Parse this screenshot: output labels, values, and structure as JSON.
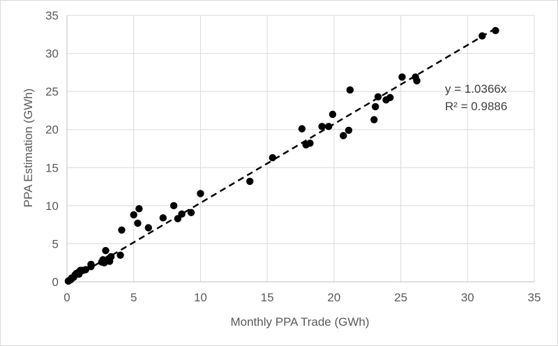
{
  "chart_data": {
    "type": "scatter",
    "title": "",
    "xlabel": "Monthly PPA Trade (GWh)",
    "ylabel": "PPA Estimation (GWh)",
    "xlim": [
      0,
      35
    ],
    "ylim": [
      0,
      35
    ],
    "xticks": [
      0,
      5,
      10,
      15,
      20,
      25,
      30,
      35
    ],
    "yticks": [
      0,
      5,
      10,
      15,
      20,
      25,
      30,
      35
    ],
    "grid": true,
    "legend": "none",
    "colors": {
      "points": "#000000",
      "trendline": "#000000",
      "grid": "#d9d9d9"
    },
    "trendline": {
      "slope": 1.0366,
      "intercept": 0,
      "style": "dashed",
      "x_range": [
        0,
        32
      ]
    },
    "annotations": {
      "equation": "y = 1.0366x",
      "r_squared": "R² = 0.9886"
    },
    "points": [
      [
        0.1,
        0.1
      ],
      [
        0.2,
        0.2
      ],
      [
        0.3,
        0.3
      ],
      [
        0.35,
        0.5
      ],
      [
        0.5,
        0.6
      ],
      [
        0.6,
        0.9
      ],
      [
        0.7,
        1.1
      ],
      [
        0.9,
        1.3
      ],
      [
        0.9,
        1.0
      ],
      [
        1.0,
        1.5
      ],
      [
        1.2,
        1.5
      ],
      [
        1.4,
        1.6
      ],
      [
        1.8,
        2.0
      ],
      [
        1.8,
        2.3
      ],
      [
        2.6,
        2.6
      ],
      [
        2.7,
        2.9
      ],
      [
        2.8,
        2.5
      ],
      [
        2.9,
        4.1
      ],
      [
        3.1,
        3.0
      ],
      [
        3.2,
        2.7
      ],
      [
        3.3,
        3.3
      ],
      [
        4.0,
        3.5
      ],
      [
        4.1,
        6.8
      ],
      [
        5.0,
        8.8
      ],
      [
        5.3,
        7.7
      ],
      [
        5.4,
        9.6
      ],
      [
        6.1,
        7.1
      ],
      [
        7.2,
        8.4
      ],
      [
        8.0,
        10.0
      ],
      [
        8.3,
        8.3
      ],
      [
        8.6,
        8.9
      ],
      [
        9.3,
        9.1
      ],
      [
        10.0,
        11.6
      ],
      [
        13.7,
        13.2
      ],
      [
        15.4,
        16.3
      ],
      [
        17.6,
        20.1
      ],
      [
        17.9,
        18.0
      ],
      [
        18.2,
        18.2
      ],
      [
        19.1,
        20.4
      ],
      [
        19.6,
        20.4
      ],
      [
        19.9,
        22.0
      ],
      [
        20.7,
        19.2
      ],
      [
        21.1,
        19.9
      ],
      [
        21.2,
        25.2
      ],
      [
        23.0,
        21.3
      ],
      [
        23.1,
        23.0
      ],
      [
        23.3,
        24.3
      ],
      [
        23.9,
        23.9
      ],
      [
        24.2,
        24.2
      ],
      [
        25.1,
        26.9
      ],
      [
        26.1,
        26.9
      ],
      [
        26.2,
        26.4
      ],
      [
        31.1,
        32.3
      ],
      [
        32.1,
        33.0
      ]
    ]
  }
}
